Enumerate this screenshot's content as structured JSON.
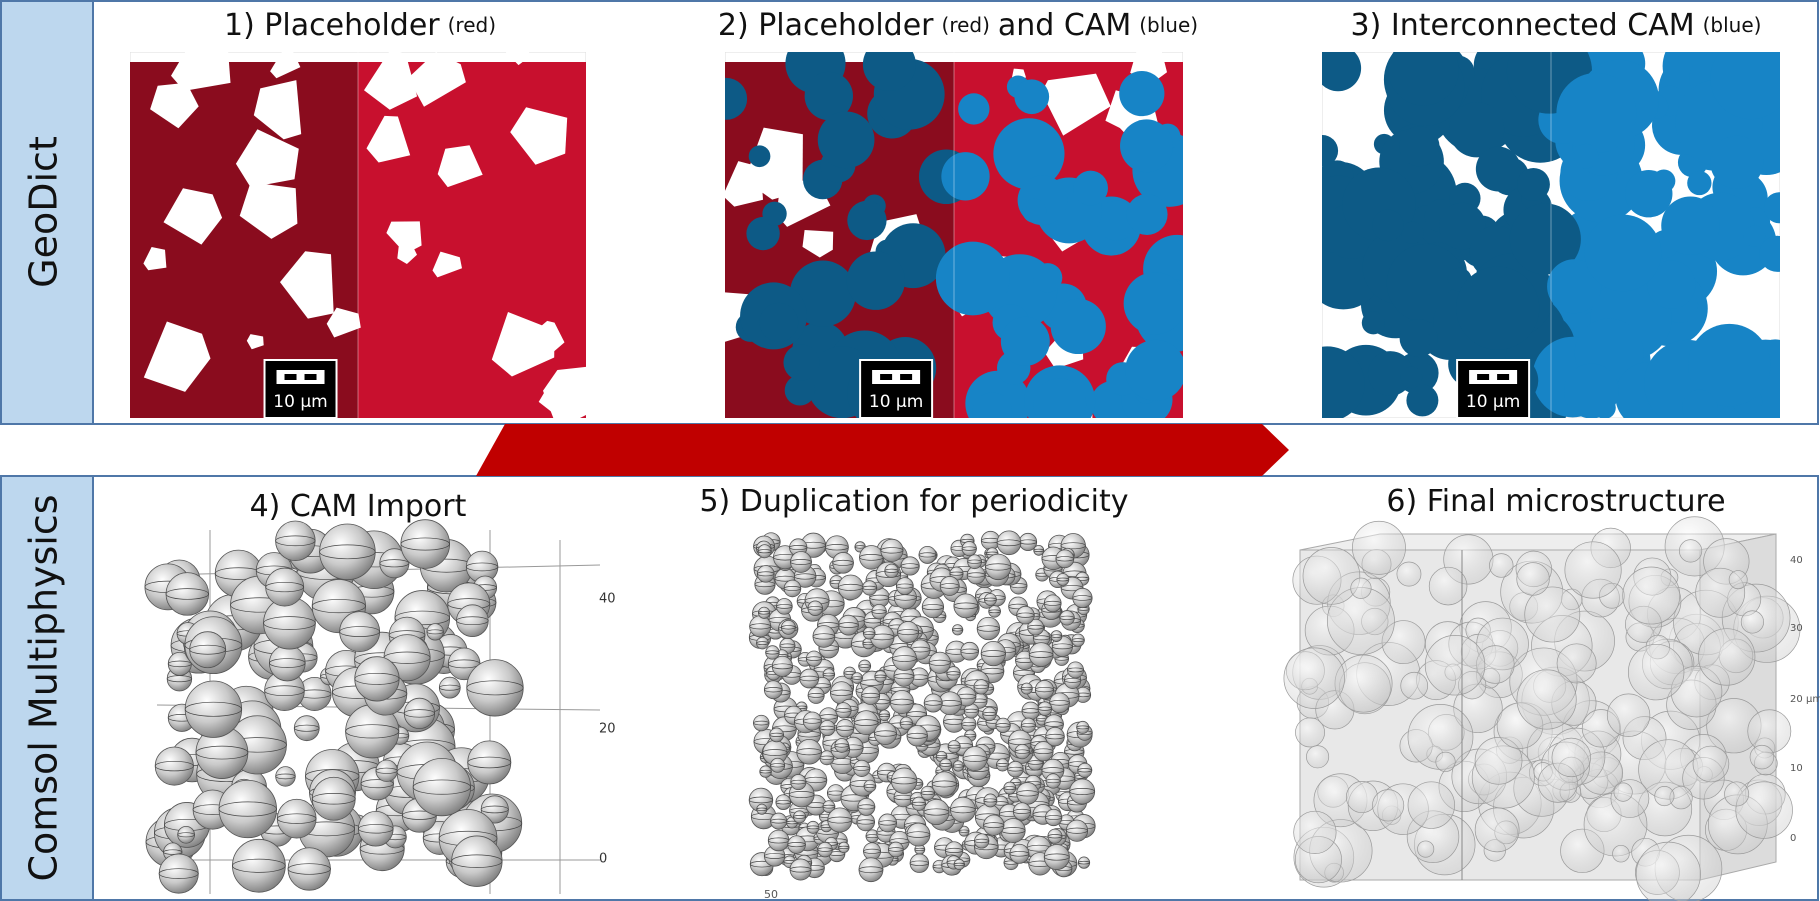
{
  "rows": [
    {
      "label": "GeoDict"
    },
    {
      "label": "Comsol Multiphysics"
    }
  ],
  "panels": [
    {
      "title": [
        {
          "text": "1) Placeholder"
        },
        {
          "text": "(red)",
          "small": true
        }
      ],
      "scale_bar": "10 µm"
    },
    {
      "title": [
        {
          "text": "2) Placeholder"
        },
        {
          "text": "(red)",
          "small": true
        },
        {
          "text": "and CAM"
        },
        {
          "text": "(blue)",
          "small": true
        }
      ],
      "scale_bar": "10 µm"
    },
    {
      "title": [
        {
          "text": "3) Interconnected CAM"
        },
        {
          "text": "(blue)",
          "small": true
        }
      ],
      "scale_bar": "10 µm"
    },
    {
      "title": [
        {
          "text": "4) CAM Import"
        }
      ],
      "axis_labels": [
        "40",
        "20",
        "0"
      ]
    },
    {
      "title": [
        {
          "text": "5) Duplication for periodicity"
        }
      ],
      "axis_labels": [
        "50"
      ]
    },
    {
      "title": [
        {
          "text": "6) Final microstructure"
        }
      ],
      "axis_labels": [
        "40",
        "30",
        "20",
        "10",
        "0",
        "µm"
      ]
    }
  ]
}
